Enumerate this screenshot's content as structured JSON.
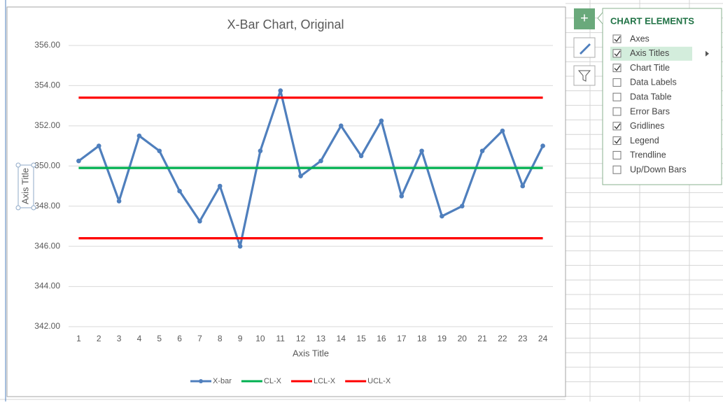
{
  "chart_data": {
    "type": "line",
    "title": "X-Bar Chart, Original",
    "x_label": "Axis Title",
    "y_label": "Axis Title",
    "categories": [
      "1",
      "2",
      "3",
      "4",
      "5",
      "6",
      "7",
      "8",
      "9",
      "10",
      "11",
      "12",
      "13",
      "14",
      "15",
      "16",
      "17",
      "18",
      "19",
      "20",
      "21",
      "22",
      "23",
      "24"
    ],
    "series": [
      {
        "name": "X-bar",
        "color": "#4f7fbd",
        "marker": true,
        "values": [
          350.25,
          351.0,
          348.25,
          351.5,
          350.75,
          348.75,
          347.25,
          349.0,
          346.0,
          350.75,
          353.75,
          349.5,
          350.25,
          352.0,
          350.5,
          352.25,
          348.5,
          350.75,
          347.5,
          348.0,
          350.75,
          351.75,
          349.0,
          351.0
        ]
      },
      {
        "name": "CL-X",
        "color": "#00b050",
        "marker": false,
        "values": [
          349.9,
          349.9,
          349.9,
          349.9,
          349.9,
          349.9,
          349.9,
          349.9,
          349.9,
          349.9,
          349.9,
          349.9,
          349.9,
          349.9,
          349.9,
          349.9,
          349.9,
          349.9,
          349.9,
          349.9,
          349.9,
          349.9,
          349.9,
          349.9
        ]
      },
      {
        "name": "LCL-X",
        "color": "#ff0000",
        "marker": false,
        "values": [
          346.4,
          346.4,
          346.4,
          346.4,
          346.4,
          346.4,
          346.4,
          346.4,
          346.4,
          346.4,
          346.4,
          346.4,
          346.4,
          346.4,
          346.4,
          346.4,
          346.4,
          346.4,
          346.4,
          346.4,
          346.4,
          346.4,
          346.4,
          346.4
        ]
      },
      {
        "name": "UCL-X",
        "color": "#ff0000",
        "marker": false,
        "values": [
          353.4,
          353.4,
          353.4,
          353.4,
          353.4,
          353.4,
          353.4,
          353.4,
          353.4,
          353.4,
          353.4,
          353.4,
          353.4,
          353.4,
          353.4,
          353.4,
          353.4,
          353.4,
          353.4,
          353.4,
          353.4,
          353.4,
          353.4,
          353.4
        ]
      }
    ],
    "ylim": [
      342,
      356
    ],
    "yticks": [
      {
        "value": 342,
        "label": "342.00"
      },
      {
        "value": 344,
        "label": "344.00"
      },
      {
        "value": 346,
        "label": "346.00"
      },
      {
        "value": 348,
        "label": "348.00"
      },
      {
        "value": 350,
        "label": "350.00"
      },
      {
        "value": 352,
        "label": "352.00"
      },
      {
        "value": 354,
        "label": "354.00"
      },
      {
        "value": 356,
        "label": "356.00"
      }
    ],
    "grid": true,
    "legend": "bottom"
  },
  "panel": {
    "title": "CHART ELEMENTS",
    "items": [
      {
        "label": "Axes",
        "checked": true
      },
      {
        "label": "Axis Titles",
        "checked": true,
        "highlighted": true
      },
      {
        "label": "Chart Title",
        "checked": true
      },
      {
        "label": "Data Labels",
        "checked": false
      },
      {
        "label": "Data Table",
        "checked": false
      },
      {
        "label": "Error Bars",
        "checked": false
      },
      {
        "label": "Gridlines",
        "checked": true
      },
      {
        "label": "Legend",
        "checked": true
      },
      {
        "label": "Trendline",
        "checked": false
      },
      {
        "label": "Up/Down Bars",
        "checked": false
      }
    ]
  }
}
